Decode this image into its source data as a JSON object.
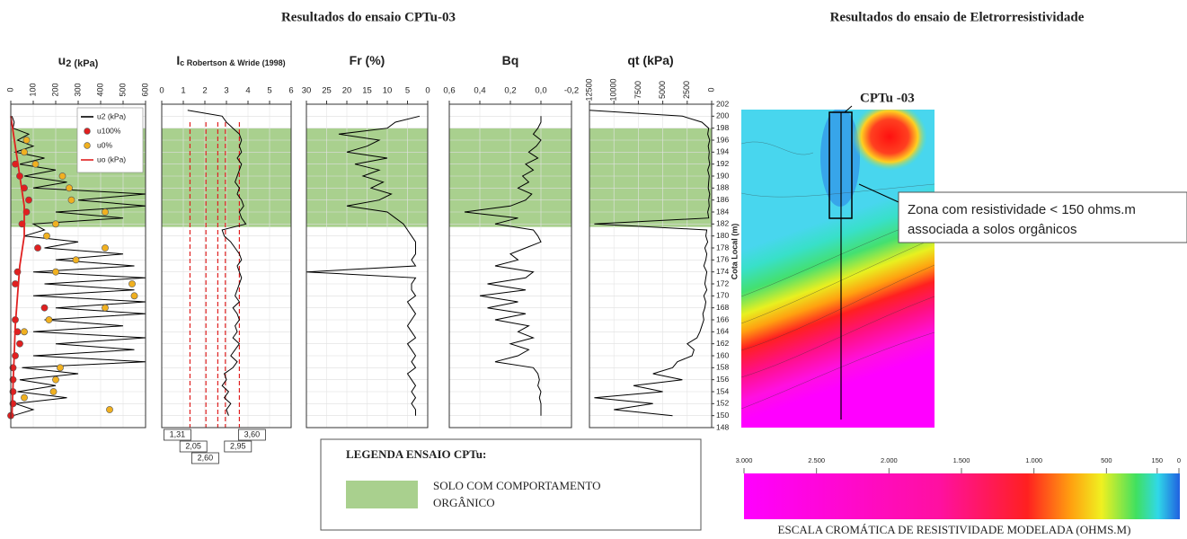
{
  "header": {
    "left_title": "Resultados do ensaio CPTu-03",
    "right_title": "Resultados do ensaio de Eletrorresistividade"
  },
  "legend_box": {
    "title": "LEGENDA ENSAIO CPTu:",
    "entries": [
      {
        "color": "#a9d08e",
        "label_lines": [
          "SOLO COM COMPORTAMENTO",
          "ORGÂNICO"
        ],
        "elevation_range": [
          181.5,
          198
        ]
      }
    ]
  },
  "chart_data": [
    {
      "type": "profile",
      "title": "u",
      "title_sub": "2 (kPa)",
      "xlim": [
        0,
        600
      ],
      "xticks": [
        0,
        100,
        200,
        300,
        400,
        500,
        600
      ],
      "legend": "top-right",
      "tick_rotation": true,
      "series": [
        {
          "name": "u2 (kPa)",
          "color": "#000000",
          "marker": "line",
          "y": [
            200,
            199,
            198,
            197,
            196,
            195,
            194,
            193,
            192,
            191,
            190,
            189,
            188,
            187,
            186,
            185,
            184,
            183,
            182,
            181,
            180,
            179,
            178,
            177,
            176,
            175,
            174,
            173,
            172,
            171,
            170,
            169,
            168,
            167,
            166,
            165,
            164,
            163,
            162,
            161,
            160,
            159,
            158,
            157,
            156,
            155,
            154,
            153,
            152,
            151,
            150
          ],
          "values": [
            5,
            15,
            10,
            80,
            30,
            100,
            20,
            150,
            40,
            200,
            60,
            250,
            100,
            600,
            300,
            600,
            200,
            500,
            100,
            150,
            60,
            300,
            150,
            500,
            200,
            550,
            100,
            600,
            150,
            550,
            100,
            600,
            200,
            600,
            150,
            500,
            100,
            600,
            200,
            550,
            100,
            600,
            50,
            300,
            40,
            200,
            30,
            250,
            20,
            100,
            10
          ]
        },
        {
          "name": "u100%",
          "color": "#e02020",
          "marker": "circle",
          "y": [
            192,
            190,
            188,
            186,
            184,
            182,
            178,
            174,
            172,
            168,
            166,
            164,
            162,
            160,
            158,
            156,
            154,
            152,
            150
          ],
          "values": [
            20,
            40,
            60,
            80,
            70,
            50,
            120,
            30,
            20,
            150,
            20,
            30,
            40,
            20,
            10,
            10,
            10,
            10,
            0
          ]
        },
        {
          "name": "u0%",
          "color": "#f0b020",
          "marker": "circle",
          "y": [
            196,
            194,
            192,
            190,
            188,
            186,
            184,
            182,
            180,
            178,
            176,
            174,
            172,
            170,
            168,
            166,
            164,
            158,
            156,
            154,
            153,
            151
          ],
          "values": [
            70,
            60,
            110,
            230,
            260,
            270,
            420,
            200,
            160,
            420,
            290,
            200,
            540,
            550,
            420,
            170,
            60,
            220,
            200,
            190,
            60,
            440
          ]
        },
        {
          "name": "uo (kPa)",
          "color": "#e02020",
          "marker": "line",
          "y": [
            200,
            195,
            190,
            185,
            180,
            175,
            170,
            165,
            160,
            155,
            150
          ],
          "values": [
            0,
            20,
            40,
            60,
            60,
            40,
            30,
            20,
            15,
            10,
            5
          ]
        }
      ]
    },
    {
      "type": "profile",
      "title": "I",
      "title_sub": "c Robertson & Wride (1998)",
      "xlim": [
        0,
        6
      ],
      "xticks": [
        0,
        1,
        2,
        3,
        4,
        5,
        6
      ],
      "boundaries": [
        {
          "value": 1.31,
          "label": "1,31"
        },
        {
          "value": 2.05,
          "label": "2,05"
        },
        {
          "value": 2.6,
          "label": "2,60"
        },
        {
          "value": 2.95,
          "label": "2,95"
        },
        {
          "value": 3.6,
          "label": "3,60"
        }
      ],
      "boundary_color": "#e02020",
      "series": [
        {
          "color": "#000000",
          "marker": "line",
          "y": [
            201,
            200,
            199,
            198,
            197,
            196,
            195,
            194,
            193,
            192,
            191,
            190,
            189,
            188,
            187,
            186,
            185,
            184,
            183,
            182,
            181,
            180,
            179,
            178,
            177,
            176,
            175,
            174,
            173,
            172,
            171,
            170,
            169,
            168,
            167,
            166,
            165,
            164,
            163,
            162,
            161,
            160,
            159,
            158,
            157,
            156,
            155,
            154,
            153,
            152,
            151,
            150
          ],
          "values": [
            1.2,
            2.8,
            3.0,
            3.3,
            3.6,
            3.7,
            3.6,
            3.7,
            3.5,
            3.7,
            3.6,
            3.5,
            3.4,
            3.6,
            3.5,
            3.7,
            3.8,
            3.6,
            3.7,
            3.9,
            2.8,
            2.9,
            3.2,
            3.4,
            3.6,
            3.7,
            3.5,
            3.6,
            3.7,
            3.6,
            3.5,
            3.4,
            3.6,
            3.3,
            3.5,
            3.6,
            3.4,
            3.5,
            3.3,
            3.6,
            3.4,
            3.2,
            3.5,
            3.3,
            2.9,
            3.0,
            2.8,
            3.1,
            2.9,
            3.2,
            3.0,
            3.1
          ]
        }
      ]
    },
    {
      "type": "profile",
      "title": "Fr (%)",
      "xlim": [
        30,
        0
      ],
      "xticks": [
        30,
        25,
        20,
        15,
        10,
        5,
        0
      ],
      "series": [
        {
          "color": "#000000",
          "marker": "line",
          "y": [
            200,
            199,
            198,
            197,
            196,
            195,
            194,
            193,
            192,
            191,
            190,
            189,
            188,
            187,
            186,
            185,
            184,
            183,
            182,
            181,
            180,
            179,
            178,
            177,
            176,
            175,
            174,
            173,
            172,
            171,
            170,
            169,
            168,
            167,
            166,
            165,
            164,
            163,
            162,
            161,
            160,
            159,
            158,
            157,
            156,
            155,
            154,
            153,
            152,
            151,
            150
          ],
          "values": [
            2,
            8,
            10,
            22,
            12,
            15,
            20,
            10,
            18,
            12,
            16,
            11,
            14,
            9,
            12,
            20,
            10,
            8,
            6,
            5,
            4,
            3,
            3,
            3,
            4,
            3,
            30,
            3,
            4,
            4,
            3,
            5,
            4,
            3,
            4,
            5,
            4,
            3,
            5,
            4,
            3,
            4,
            3,
            5,
            4,
            3,
            4,
            3,
            4,
            3,
            3
          ]
        }
      ]
    },
    {
      "type": "profile",
      "title": "Bq",
      "xlim": [
        0.6,
        -0.2
      ],
      "xticks": [
        {
          "value": 0.6,
          "label": "0,6"
        },
        {
          "value": 0.4,
          "label": "0,4"
        },
        {
          "value": 0.2,
          "label": "0,2"
        },
        {
          "value": 0,
          "label": "0,0"
        },
        {
          "value": -0.2,
          "label": "-0,2"
        }
      ],
      "series": [
        {
          "color": "#000000",
          "marker": "line",
          "y": [
            200,
            199,
            198,
            197,
            196,
            195,
            194,
            193,
            192,
            191,
            190,
            189,
            188,
            187,
            186,
            185,
            184,
            183,
            182,
            181,
            180,
            179,
            178,
            177,
            176,
            175,
            174,
            173,
            172,
            171,
            170,
            169,
            168,
            167,
            166,
            165,
            164,
            163,
            162,
            161,
            160,
            159,
            158,
            157,
            156,
            155,
            154,
            153,
            152,
            151,
            150
          ],
          "values": [
            0,
            0,
            0.02,
            0.05,
            0,
            0.03,
            0.08,
            0.02,
            0.1,
            0.05,
            0.12,
            0.08,
            0.15,
            0.06,
            0.1,
            0.2,
            0.5,
            0.15,
            0.3,
            0.05,
            0.02,
            0,
            0.1,
            0.2,
            0.15,
            0.3,
            0.05,
            0.1,
            0.35,
            0.1,
            0.4,
            0.15,
            0.35,
            0.1,
            0.3,
            0.08,
            0.15,
            0.05,
            0.2,
            0.08,
            0.15,
            0.3,
            0.05,
            0.02,
            0.01,
            0.02,
            0,
            0.01,
            0,
            0,
            0
          ]
        }
      ]
    },
    {
      "type": "profile",
      "title": "qt (kPa)",
      "xlim": [
        12500,
        0
      ],
      "xticks": [
        12500,
        10000,
        7500,
        5000,
        2500,
        0
      ],
      "tick_rotation": true,
      "ylim": [
        148,
        202
      ],
      "yticks": [
        148,
        150,
        152,
        154,
        156,
        158,
        160,
        162,
        164,
        166,
        168,
        170,
        172,
        174,
        176,
        178,
        180,
        182,
        184,
        186,
        188,
        190,
        192,
        194,
        196,
        198,
        200,
        202
      ],
      "ylabel": "Cota Local (m)",
      "series": [
        {
          "color": "#000000",
          "marker": "line",
          "y": [
            201,
            200,
            199,
            198,
            197,
            196,
            195,
            194,
            193,
            192,
            191,
            190,
            189,
            188,
            187,
            186,
            185,
            184,
            183,
            182,
            181,
            180,
            179,
            178,
            177,
            176,
            175,
            174,
            173,
            172,
            171,
            170,
            169,
            168,
            167,
            166,
            165,
            164,
            163,
            162,
            161,
            160,
            159,
            158,
            157,
            156,
            155,
            154,
            153,
            152,
            151,
            150
          ],
          "values": [
            12500,
            3000,
            1000,
            300,
            400,
            200,
            350,
            250,
            300,
            200,
            400,
            250,
            300,
            350,
            200,
            300,
            250,
            400,
            300,
            12000,
            500,
            600,
            400,
            700,
            500,
            600,
            800,
            500,
            600,
            700,
            500,
            800,
            600,
            700,
            900,
            800,
            1000,
            1200,
            1500,
            2500,
            1800,
            2000,
            3500,
            4000,
            6000,
            3000,
            8000,
            5000,
            12000,
            6000,
            10000,
            4000
          ]
        }
      ]
    },
    {
      "type": "resistivity_section",
      "probe_label": "CPTu -03",
      "zone_note": [
        "Zona com resistividade < 150 ohms.m",
        "associada a solos orgânicos"
      ],
      "colorbar": {
        "xlim": [
          3000,
          0
        ],
        "xticks": [
          {
            "value": 3000,
            "label": "3.000"
          },
          {
            "value": 2500,
            "label": "2.500"
          },
          {
            "value": 2000,
            "label": "2.000"
          },
          {
            "value": 1500,
            "label": "1.500"
          },
          {
            "value": 1000,
            "label": "1.000"
          },
          500,
          150,
          0
        ],
        "label": "ESCALA  CROMÁTICA DE RESISTIVIDADE MODELADA (OHMS.M)"
      }
    }
  ]
}
